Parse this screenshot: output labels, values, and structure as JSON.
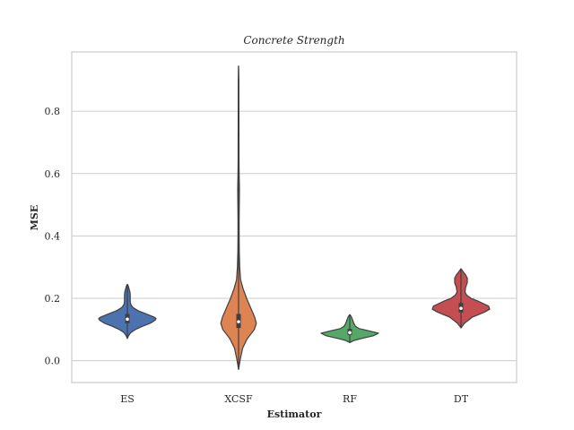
{
  "chart_data": {
    "type": "violin",
    "title": "Concrete Strength",
    "xlabel": "Estimator",
    "ylabel": "MSE",
    "categories": [
      "ES",
      "XCSF",
      "RF",
      "DT"
    ],
    "ylim": [
      -0.07,
      0.99
    ],
    "yticks": [
      0.0,
      0.2,
      0.4,
      0.6,
      0.8
    ],
    "ytick_labels": [
      "0.0",
      "0.2",
      "0.4",
      "0.6",
      "0.8"
    ],
    "grid": "horizontal",
    "colors": [
      "#4c72b0",
      "#dd8452",
      "#55a868",
      "#c44e52"
    ],
    "violins": [
      {
        "name": "ES",
        "min": 0.071,
        "max": 0.245,
        "q1": 0.12,
        "median": 0.133,
        "q3": 0.15,
        "profile": [
          [
            0.071,
            0.0
          ],
          [
            0.08,
            0.04
          ],
          [
            0.09,
            0.12
          ],
          [
            0.1,
            0.28
          ],
          [
            0.11,
            0.52
          ],
          [
            0.12,
            0.8
          ],
          [
            0.13,
            0.97
          ],
          [
            0.135,
            1.0
          ],
          [
            0.14,
            0.93
          ],
          [
            0.15,
            0.66
          ],
          [
            0.16,
            0.38
          ],
          [
            0.17,
            0.2
          ],
          [
            0.18,
            0.12
          ],
          [
            0.19,
            0.1
          ],
          [
            0.2,
            0.1
          ],
          [
            0.21,
            0.1
          ],
          [
            0.22,
            0.09
          ],
          [
            0.23,
            0.06
          ],
          [
            0.24,
            0.03
          ],
          [
            0.245,
            0.0
          ]
        ]
      },
      {
        "name": "XCSF",
        "min": -0.028,
        "max": 0.945,
        "q1": 0.105,
        "median": 0.125,
        "q3": 0.15,
        "profile": [
          [
            -0.028,
            0.0
          ],
          [
            0.0,
            0.05
          ],
          [
            0.04,
            0.14
          ],
          [
            0.07,
            0.3
          ],
          [
            0.1,
            0.55
          ],
          [
            0.12,
            0.62
          ],
          [
            0.14,
            0.56
          ],
          [
            0.17,
            0.42
          ],
          [
            0.2,
            0.28
          ],
          [
            0.23,
            0.16
          ],
          [
            0.26,
            0.07
          ],
          [
            0.3,
            0.04
          ],
          [
            0.35,
            0.025
          ],
          [
            0.4,
            0.02
          ],
          [
            0.45,
            0.02
          ],
          [
            0.5,
            0.025
          ],
          [
            0.55,
            0.03
          ],
          [
            0.6,
            0.02
          ],
          [
            0.65,
            0.015
          ],
          [
            0.7,
            0.015
          ],
          [
            0.8,
            0.012
          ],
          [
            0.9,
            0.01
          ],
          [
            0.945,
            0.0
          ]
        ]
      },
      {
        "name": "RF",
        "min": 0.058,
        "max": 0.148,
        "q1": 0.083,
        "median": 0.09,
        "q3": 0.102,
        "profile": [
          [
            0.058,
            0.0
          ],
          [
            0.065,
            0.15
          ],
          [
            0.072,
            0.45
          ],
          [
            0.08,
            0.82
          ],
          [
            0.088,
            1.0
          ],
          [
            0.095,
            0.7
          ],
          [
            0.103,
            0.33
          ],
          [
            0.11,
            0.2
          ],
          [
            0.12,
            0.14
          ],
          [
            0.13,
            0.1
          ],
          [
            0.14,
            0.06
          ],
          [
            0.148,
            0.0
          ]
        ]
      },
      {
        "name": "DT",
        "min": 0.105,
        "max": 0.295,
        "q1": 0.155,
        "median": 0.168,
        "q3": 0.185,
        "profile": [
          [
            0.105,
            0.0
          ],
          [
            0.12,
            0.12
          ],
          [
            0.14,
            0.4
          ],
          [
            0.155,
            0.8
          ],
          [
            0.165,
            1.0
          ],
          [
            0.175,
            0.96
          ],
          [
            0.19,
            0.62
          ],
          [
            0.2,
            0.35
          ],
          [
            0.21,
            0.2
          ],
          [
            0.22,
            0.14
          ],
          [
            0.235,
            0.16
          ],
          [
            0.25,
            0.22
          ],
          [
            0.265,
            0.22
          ],
          [
            0.275,
            0.16
          ],
          [
            0.285,
            0.08
          ],
          [
            0.295,
            0.0
          ]
        ]
      }
    ]
  }
}
